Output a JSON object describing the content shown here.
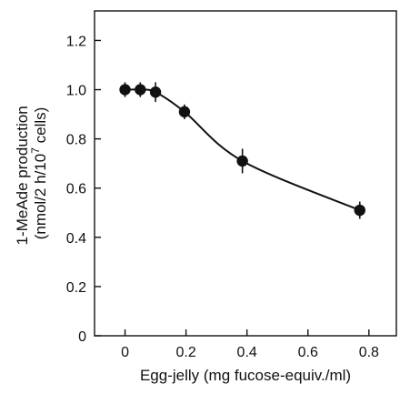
{
  "chart_data": {
    "type": "scatter",
    "xlabel": "Egg-jelly (mg fucose-equiv./ml)",
    "ylabel_line1": "1-MeAde production",
    "ylabel_line2_prefix": "(nmol/2 h/10",
    "ylabel_line2_exp": "7",
    "ylabel_line2_suffix": " cells)",
    "xlim": [
      -0.1,
      0.89
    ],
    "ylim": [
      0,
      1.32
    ],
    "x_ticks": [
      0,
      0.2,
      0.4,
      0.6,
      0.8
    ],
    "x_tick_labels": [
      "0",
      "0.2",
      "0.4",
      "0.6",
      "0.8"
    ],
    "y_ticks": [
      0,
      0.2,
      0.4,
      0.6,
      0.8,
      1.0,
      1.2
    ],
    "y_tick_labels": [
      "0",
      "0.2",
      "0.4",
      "0.6",
      "0.8",
      "1.0",
      "1.2"
    ],
    "grid": false,
    "series": [
      {
        "x": [
          0,
          0.05,
          0.1,
          0.195,
          0.385,
          0.77
        ],
        "y": [
          1.0,
          1.0,
          0.99,
          0.91,
          0.71,
          0.51
        ],
        "error": [
          0.03,
          0.03,
          0.04,
          0.03,
          0.05,
          0.035
        ],
        "color": "#111111",
        "curve": true
      }
    ]
  }
}
